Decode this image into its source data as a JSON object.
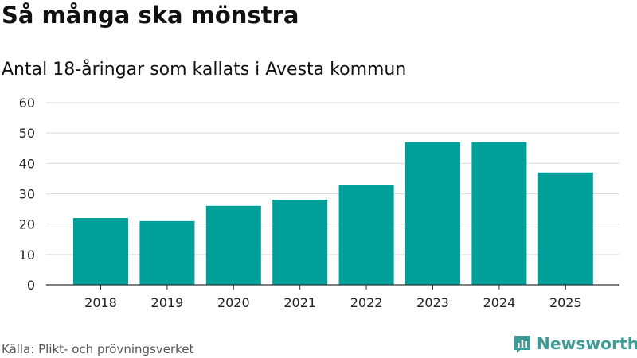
{
  "title": "Så många ska mönstra",
  "subtitle": "Antal 18-åringar som kallats i Avesta kommun",
  "source": "Källa: Plikt- och prövningsverket",
  "brand": {
    "name": "Newsworthy",
    "icon": "newsworthy-logo-icon",
    "color": "#3a9b94"
  },
  "chart_data": {
    "type": "bar",
    "title": "Så många ska mönstra",
    "subtitle": "Antal 18-åringar som kallats i Avesta kommun",
    "xlabel": "",
    "ylabel": "",
    "categories": [
      "2018",
      "2019",
      "2020",
      "2021",
      "2022",
      "2023",
      "2024",
      "2025"
    ],
    "values": [
      22,
      21,
      26,
      28,
      33,
      47,
      47,
      37
    ],
    "ylim": [
      0,
      60
    ],
    "yticks": [
      0,
      10,
      20,
      30,
      40,
      50,
      60
    ],
    "grid": true,
    "bar_color": "#00a09a"
  }
}
